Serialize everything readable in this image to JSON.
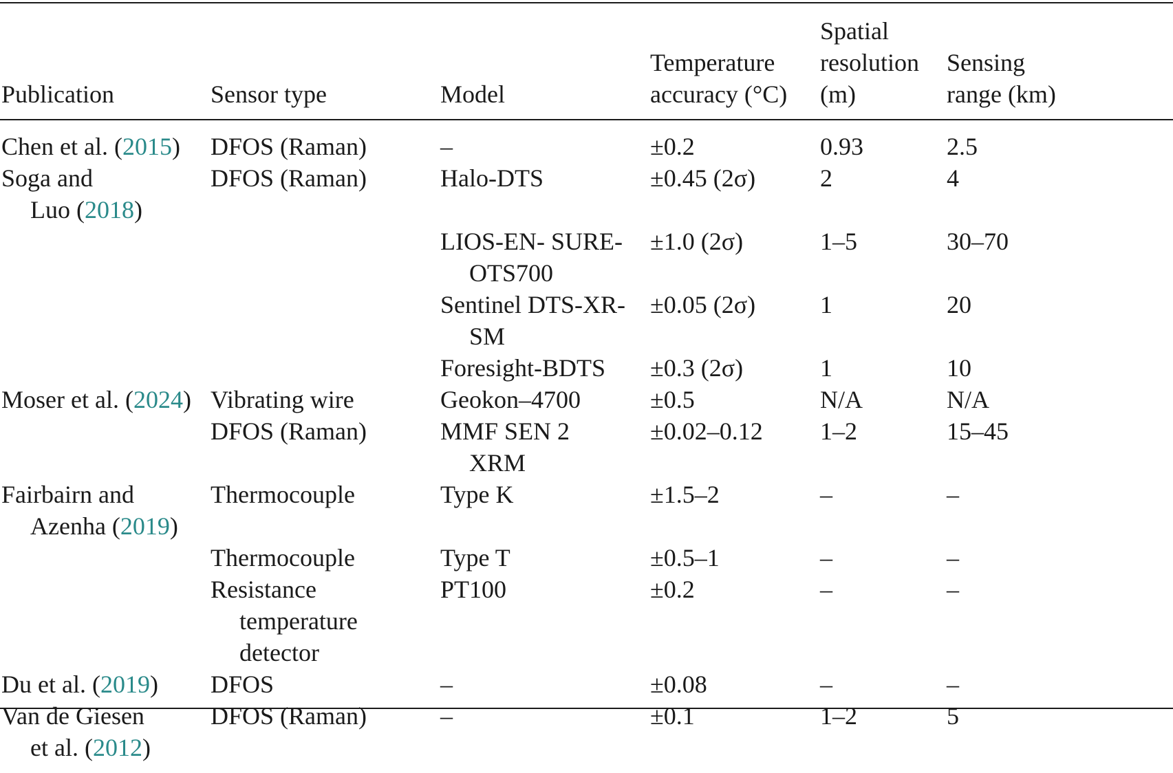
{
  "table": {
    "headers": {
      "publication": [
        "Publication"
      ],
      "sensor_type": [
        "Sensor type"
      ],
      "model": [
        "Model"
      ],
      "temperature_accuracy": [
        "Temperature",
        "accuracy (°C)"
      ],
      "spatial_resolution": [
        "Spatial",
        "resolution",
        "(m)"
      ],
      "sensing_range": [
        "Sensing",
        "range (km)"
      ]
    },
    "rows": [
      {
        "publication": {
          "pre": [
            "Chen et al. ("
          ],
          "year": "2015",
          "post": ")"
        },
        "sensor_type": [
          "DFOS (Raman)"
        ],
        "model": [
          "–"
        ],
        "accuracy": [
          "±0.2"
        ],
        "resolution": [
          "0.93"
        ],
        "range": [
          "2.5"
        ]
      },
      {
        "publication": {
          "pre": [
            "Soga and",
            "Luo ("
          ],
          "year": "2018",
          "post": ")"
        },
        "sensor_type": [
          "DFOS (Raman)"
        ],
        "model": [
          "Halo-DTS"
        ],
        "accuracy": [
          "±0.45 (2σ)"
        ],
        "resolution": [
          "2"
        ],
        "range": [
          "4"
        ]
      },
      {
        "publication": null,
        "sensor_type": [],
        "model": [
          "LIOS-EN- SURE-",
          "OTS700"
        ],
        "accuracy": [
          "±1.0 (2σ)"
        ],
        "resolution": [
          "1–5"
        ],
        "range": [
          "30–70"
        ]
      },
      {
        "publication": null,
        "sensor_type": [],
        "model": [
          "Sentinel DTS-XR-",
          "SM"
        ],
        "accuracy": [
          "±0.05 (2σ)"
        ],
        "resolution": [
          "1"
        ],
        "range": [
          "20"
        ]
      },
      {
        "publication": null,
        "sensor_type": [],
        "model": [
          "Foresight-BDTS"
        ],
        "accuracy": [
          "±0.3 (2σ)"
        ],
        "resolution": [
          "1"
        ],
        "range": [
          "10"
        ]
      },
      {
        "publication": {
          "pre": [
            "Moser et al. ("
          ],
          "year": "2024",
          "post": ")"
        },
        "sensor_type": [
          "Vibrating wire"
        ],
        "model": [
          "Geokon–4700"
        ],
        "accuracy": [
          "±0.5"
        ],
        "resolution": [
          "N/A"
        ],
        "range": [
          "N/A"
        ]
      },
      {
        "publication": null,
        "sensor_type": [
          "DFOS (Raman)"
        ],
        "model": [
          "MMF SEN 2",
          "XRM"
        ],
        "accuracy": [
          "±0.02–0.12"
        ],
        "resolution": [
          "1–2"
        ],
        "range": [
          "15–45"
        ]
      },
      {
        "publication": {
          "pre": [
            "Fairbairn and",
            "Azenha ("
          ],
          "year": "2019",
          "post": ")"
        },
        "sensor_type": [
          "Thermocouple"
        ],
        "model": [
          "Type K"
        ],
        "accuracy": [
          "±1.5–2"
        ],
        "resolution": [
          "–"
        ],
        "range": [
          "–"
        ]
      },
      {
        "publication": null,
        "sensor_type": [
          "Thermocouple"
        ],
        "model": [
          "Type T"
        ],
        "accuracy": [
          "±0.5–1"
        ],
        "resolution": [
          "–"
        ],
        "range": [
          "–"
        ]
      },
      {
        "publication": null,
        "sensor_type": [
          "Resistance",
          "temperature",
          "detector"
        ],
        "model": [
          "PT100"
        ],
        "accuracy": [
          "±0.2"
        ],
        "resolution": [
          "–"
        ],
        "range": [
          "–"
        ]
      },
      {
        "publication": {
          "pre": [
            "Du et al. ("
          ],
          "year": "2019",
          "post": ")"
        },
        "sensor_type": [
          "DFOS"
        ],
        "model": [
          "–"
        ],
        "accuracy": [
          "±0.08"
        ],
        "resolution": [
          "–"
        ],
        "range": [
          "–"
        ]
      },
      {
        "publication": {
          "pre": [
            "Van de Giesen",
            "et al. ("
          ],
          "year": "2012",
          "post": ")"
        },
        "sensor_type": [
          "DFOS (Raman)"
        ],
        "model": [
          "–"
        ],
        "accuracy": [
          "±0.1"
        ],
        "resolution": [
          "1–2"
        ],
        "range": [
          "5"
        ]
      }
    ]
  },
  "colors": {
    "text": "#1a1a1a",
    "citation_year": "#2a8a8a"
  }
}
